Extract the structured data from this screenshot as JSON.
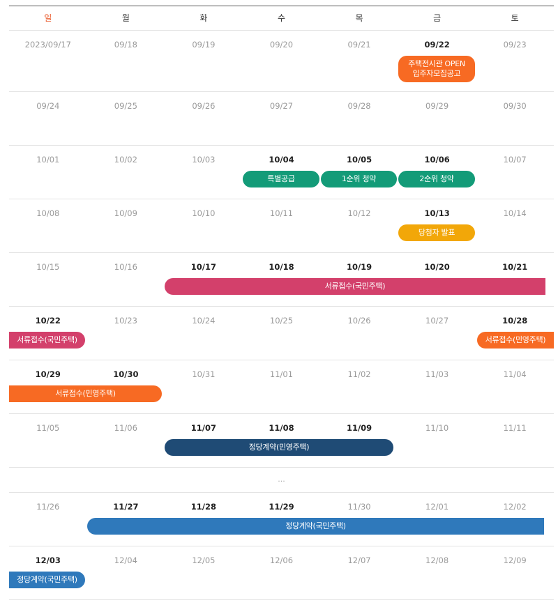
{
  "colors": {
    "orange": "#f76a23",
    "green": "#139b78",
    "yellow": "#f2a709",
    "pink": "#d3406b",
    "navy": "#1f4b75",
    "blue": "#2f79bb"
  },
  "weekdays": [
    "일",
    "월",
    "화",
    "수",
    "목",
    "금",
    "토"
  ],
  "weeks": [
    {
      "days": [
        {
          "t": "2023/09/17"
        },
        {
          "t": "09/18"
        },
        {
          "t": "09/19"
        },
        {
          "t": "09/20"
        },
        {
          "t": "09/21"
        },
        {
          "t": "09/22",
          "bold": true
        },
        {
          "t": "09/23"
        }
      ],
      "events": [
        {
          "label": "주택전시관 OPEN\n입주자모집공고",
          "color": "orange"
        }
      ]
    },
    {
      "days": [
        {
          "t": "09/24"
        },
        {
          "t": "09/25"
        },
        {
          "t": "09/26"
        },
        {
          "t": "09/27"
        },
        {
          "t": "09/28"
        },
        {
          "t": "09/29"
        },
        {
          "t": "09/30"
        }
      ],
      "events": []
    },
    {
      "days": [
        {
          "t": "10/01"
        },
        {
          "t": "10/02"
        },
        {
          "t": "10/03"
        },
        {
          "t": "10/04",
          "bold": true
        },
        {
          "t": "10/05",
          "bold": true
        },
        {
          "t": "10/06",
          "bold": true
        },
        {
          "t": "10/07"
        }
      ],
      "events": [
        {
          "label": "특별공급",
          "color": "green"
        },
        {
          "label": "1순위 청약",
          "color": "green"
        },
        {
          "label": "2순위 청약",
          "color": "green"
        }
      ]
    },
    {
      "days": [
        {
          "t": "10/08"
        },
        {
          "t": "10/09"
        },
        {
          "t": "10/10"
        },
        {
          "t": "10/11"
        },
        {
          "t": "10/12"
        },
        {
          "t": "10/13",
          "bold": true
        },
        {
          "t": "10/14"
        }
      ],
      "events": [
        {
          "label": "당첨자 발표",
          "color": "yellow"
        }
      ]
    },
    {
      "days": [
        {
          "t": "10/15"
        },
        {
          "t": "10/16"
        },
        {
          "t": "10/17",
          "bold": true
        },
        {
          "t": "10/18",
          "bold": true
        },
        {
          "t": "10/19",
          "bold": true
        },
        {
          "t": "10/20",
          "bold": true
        },
        {
          "t": "10/21",
          "bold": true
        }
      ],
      "events": [
        {
          "label": "서류접수(국민주택)",
          "color": "pink"
        }
      ]
    },
    {
      "days": [
        {
          "t": "10/22",
          "bold": true
        },
        {
          "t": "10/23"
        },
        {
          "t": "10/24"
        },
        {
          "t": "10/25"
        },
        {
          "t": "10/26"
        },
        {
          "t": "10/27"
        },
        {
          "t": "10/28",
          "bold": true
        }
      ],
      "events": [
        {
          "label": "서류접수(국민주택)",
          "color": "pink"
        },
        {
          "label": "서류접수(민영주택)",
          "color": "orange"
        }
      ]
    },
    {
      "days": [
        {
          "t": "10/29",
          "bold": true
        },
        {
          "t": "10/30",
          "bold": true
        },
        {
          "t": "10/31"
        },
        {
          "t": "11/01"
        },
        {
          "t": "11/02"
        },
        {
          "t": "11/03"
        },
        {
          "t": "11/04"
        }
      ],
      "events": [
        {
          "label": "서류접수(민영주택)",
          "color": "orange"
        }
      ]
    },
    {
      "days": [
        {
          "t": "11/05"
        },
        {
          "t": "11/06"
        },
        {
          "t": "11/07",
          "bold": true
        },
        {
          "t": "11/08",
          "bold": true
        },
        {
          "t": "11/09",
          "bold": true
        },
        {
          "t": "11/10"
        },
        {
          "t": "11/11"
        }
      ],
      "events": [
        {
          "label": "정당계약(민영주택)",
          "color": "navy"
        }
      ]
    },
    {
      "ellipsis": "..."
    },
    {
      "days": [
        {
          "t": "11/26"
        },
        {
          "t": "11/27",
          "bold": true
        },
        {
          "t": "11/28",
          "bold": true
        },
        {
          "t": "11/29",
          "bold": true
        },
        {
          "t": "11/30"
        },
        {
          "t": "12/01"
        },
        {
          "t": "12/02"
        }
      ],
      "events": [
        {
          "label": "정당계약(국민주택)",
          "color": "blue"
        }
      ]
    },
    {
      "days": [
        {
          "t": "12/03",
          "bold": true
        },
        {
          "t": "12/04"
        },
        {
          "t": "12/05"
        },
        {
          "t": "12/06"
        },
        {
          "t": "12/07"
        },
        {
          "t": "12/08"
        },
        {
          "t": "12/09"
        }
      ],
      "events": [
        {
          "label": "정당계약(국민주택)",
          "color": "blue"
        }
      ]
    }
  ]
}
